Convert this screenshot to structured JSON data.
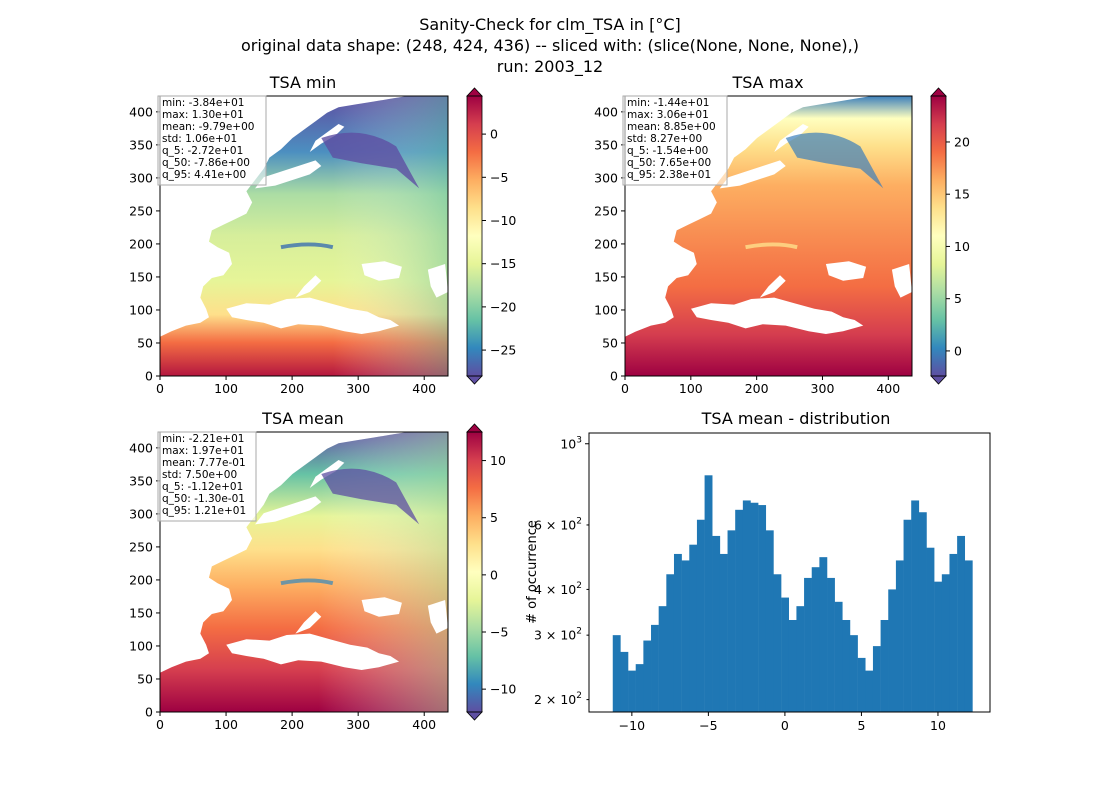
{
  "figure": {
    "title_lines": [
      "Sanity-Check for clm_TSA in [°C]",
      "original data shape: (248, 424, 436) -- sliced with: (slice(None, None, None),)",
      "run: 2003_12"
    ]
  },
  "panels": [
    {
      "title": "TSA min",
      "stats": [
        "min: -3.84e+01",
        "max: 1.30e+01",
        "mean: -9.79e+00",
        "std: 1.06e+01",
        "q_5: -2.72e+01",
        "q_50: -7.86e+00",
        "q_95: 4.41e+00"
      ],
      "xticks": [
        "0",
        "100",
        "200",
        "300",
        "400"
      ],
      "yticks": [
        "0",
        "50",
        "100",
        "150",
        "200",
        "250",
        "300",
        "350",
        "400"
      ],
      "colorbar": {
        "vmin": -28,
        "vmax": 4.41,
        "ticks": [
          -25,
          -20,
          -15,
          -10,
          -5,
          0
        ],
        "tick_labels": [
          "−25",
          "−20",
          "−15",
          "−10",
          "−5",
          "0"
        ]
      }
    },
    {
      "title": "TSA max",
      "stats": [
        "min: -1.44e+01",
        "max: 3.06e+01",
        "mean: 8.85e+00",
        "std: 8.27e+00",
        "q_5: -1.54e+00",
        "q_50: 7.65e+00",
        "q_95: 2.38e+01"
      ],
      "xticks": [
        "0",
        "100",
        "200",
        "300",
        "400"
      ],
      "yticks": [
        "0",
        "50",
        "100",
        "150",
        "200",
        "250",
        "300",
        "350",
        "400"
      ],
      "colorbar": {
        "vmin": -2.4,
        "vmax": 24.4,
        "ticks": [
          0,
          5,
          10,
          15,
          20
        ],
        "tick_labels": [
          "0",
          "5",
          "10",
          "15",
          "20"
        ]
      }
    },
    {
      "title": "TSA mean",
      "stats": [
        "min: -2.21e+01",
        "max: 1.97e+01",
        "mean: 7.77e-01",
        "std: 7.50e+00",
        "q_5: -1.12e+01",
        "q_50: -1.30e-01",
        "q_95: 1.21e+01"
      ],
      "xticks": [
        "0",
        "100",
        "200",
        "300",
        "400"
      ],
      "yticks": [
        "0",
        "50",
        "100",
        "150",
        "200",
        "250",
        "300",
        "350",
        "400"
      ],
      "colorbar": {
        "vmin": -12,
        "vmax": 12.5,
        "ticks": [
          -10,
          -5,
          0,
          5,
          10
        ],
        "tick_labels": [
          "−10",
          "−5",
          "0",
          "5",
          "10"
        ]
      }
    }
  ],
  "colors": {
    "bar": "#1f77b4",
    "spectral": [
      "#5e4fa2",
      "#3288bd",
      "#66c2a5",
      "#abdda4",
      "#e6f598",
      "#ffffbf",
      "#fee08b",
      "#fdae61",
      "#f46d43",
      "#d53e4f",
      "#9e0142"
    ]
  },
  "chart_data": [
    {
      "type": "heatmap",
      "title": "TSA min",
      "xlim": [
        0,
        436
      ],
      "ylim": [
        0,
        424
      ],
      "colormap": "Spectral_r",
      "colorbar_range": [
        -28,
        4.41
      ]
    },
    {
      "type": "heatmap",
      "title": "TSA max",
      "xlim": [
        0,
        436
      ],
      "ylim": [
        0,
        424
      ],
      "colormap": "Spectral_r",
      "colorbar_range": [
        -2.4,
        24.4
      ]
    },
    {
      "type": "heatmap",
      "title": "TSA mean",
      "xlim": [
        0,
        436
      ],
      "ylim": [
        0,
        424
      ],
      "colormap": "Spectral_r",
      "colorbar_range": [
        -12,
        12.5
      ]
    },
    {
      "type": "bar",
      "title": "TSA mean - distribution",
      "xlabel": "",
      "ylabel": "# of occurrence",
      "yscale": "log",
      "xlim": [
        -12.8,
        13.4
      ],
      "ylim": [
        185,
        1070
      ],
      "xticks": [
        -10,
        -5,
        0,
        5,
        10
      ],
      "xtick_labels": [
        "−10",
        "−5",
        "0",
        "5",
        "10"
      ],
      "yticks": [
        200,
        300,
        400,
        600,
        1000
      ],
      "ytick_labels": [
        {
          "base": "2 × 10",
          "exp": "2"
        },
        {
          "base": "3 × 10",
          "exp": "2"
        },
        {
          "base": "4 × 10",
          "exp": "2"
        },
        {
          "base": "6 × 10",
          "exp": "2"
        },
        {
          "base": "10",
          "exp": "3"
        }
      ],
      "bin_range": [
        -11.2,
        12.1
      ],
      "bar_values": [
        {
          "x": -11.0,
          "y": 300
        },
        {
          "x": -10.5,
          "y": 270
        },
        {
          "x": -10.0,
          "y": 240
        },
        {
          "x": -9.5,
          "y": 250
        },
        {
          "x": -9.0,
          "y": 290
        },
        {
          "x": -8.5,
          "y": 320
        },
        {
          "x": -8.0,
          "y": 360
        },
        {
          "x": -7.5,
          "y": 440
        },
        {
          "x": -7.0,
          "y": 500
        },
        {
          "x": -6.5,
          "y": 480
        },
        {
          "x": -6.0,
          "y": 530
        },
        {
          "x": -5.5,
          "y": 620
        },
        {
          "x": -5.0,
          "y": 820
        },
        {
          "x": -4.5,
          "y": 560
        },
        {
          "x": -4.0,
          "y": 500
        },
        {
          "x": -3.5,
          "y": 580
        },
        {
          "x": -3.0,
          "y": 660
        },
        {
          "x": -2.5,
          "y": 700
        },
        {
          "x": -2.0,
          "y": 690
        },
        {
          "x": -1.5,
          "y": 680
        },
        {
          "x": -1.0,
          "y": 580
        },
        {
          "x": -0.5,
          "y": 440
        },
        {
          "x": 0.0,
          "y": 380
        },
        {
          "x": 0.5,
          "y": 330
        },
        {
          "x": 1.0,
          "y": 360
        },
        {
          "x": 1.5,
          "y": 430
        },
        {
          "x": 2.0,
          "y": 460
        },
        {
          "x": 2.5,
          "y": 490
        },
        {
          "x": 3.0,
          "y": 430
        },
        {
          "x": 3.5,
          "y": 370
        },
        {
          "x": 4.0,
          "y": 330
        },
        {
          "x": 4.5,
          "y": 300
        },
        {
          "x": 5.0,
          "y": 260
        },
        {
          "x": 5.5,
          "y": 240
        },
        {
          "x": 6.0,
          "y": 280
        },
        {
          "x": 6.5,
          "y": 330
        },
        {
          "x": 7.0,
          "y": 400
        },
        {
          "x": 7.5,
          "y": 480
        },
        {
          "x": 8.0,
          "y": 620
        },
        {
          "x": 8.5,
          "y": 700
        },
        {
          "x": 9.0,
          "y": 650
        },
        {
          "x": 9.5,
          "y": 520
        },
        {
          "x": 10.0,
          "y": 420
        },
        {
          "x": 10.5,
          "y": 440
        },
        {
          "x": 11.0,
          "y": 500
        },
        {
          "x": 11.5,
          "y": 560
        },
        {
          "x": 12.0,
          "y": 480
        }
      ]
    }
  ]
}
